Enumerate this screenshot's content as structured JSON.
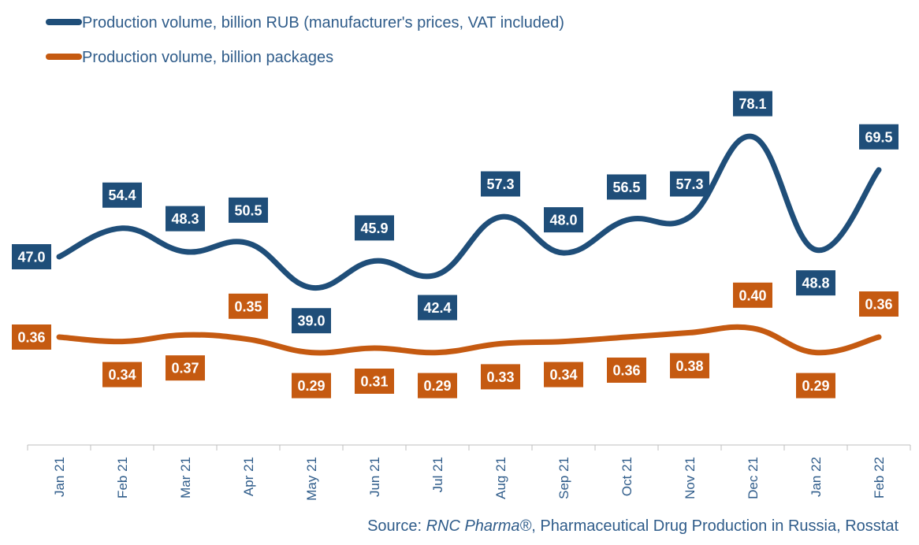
{
  "chart_data": {
    "type": "line",
    "categories": [
      "Jan 21",
      "Feb 21",
      "Mar 21",
      "Apr 21",
      "May 21",
      "Jun 21",
      "Jul 21",
      "Aug 21",
      "Sep 21",
      "Oct 21",
      "Nov 21",
      "Dec 21",
      "Jan 22",
      "Feb 22"
    ],
    "series": [
      {
        "name": "Production volume, billion RUB (manufacturer's prices, VAT included)",
        "color": "#1f4e79",
        "values": [
          47.0,
          54.4,
          48.3,
          50.5,
          39.0,
          45.9,
          42.4,
          57.3,
          48.0,
          56.5,
          57.3,
          78.1,
          48.8,
          69.5
        ],
        "labels": [
          "47.0",
          "54.4",
          "48.3",
          "50.5",
          "39.0",
          "45.9",
          "42.4",
          "57.3",
          "48.0",
          "56.5",
          "57.3",
          "78.1",
          "48.8",
          "69.5"
        ],
        "label_side": [
          "left",
          "above",
          "above",
          "above",
          "below",
          "above",
          "below",
          "above",
          "above",
          "above",
          "above",
          "above",
          "below",
          "above"
        ]
      },
      {
        "name": "Production volume, billion packages",
        "color": "#c55a11",
        "values": [
          0.36,
          0.34,
          0.37,
          0.35,
          0.29,
          0.31,
          0.29,
          0.33,
          0.34,
          0.36,
          0.38,
          0.4,
          0.29,
          0.36
        ],
        "labels": [
          "0.36",
          "0.34",
          "0.37",
          "0.35",
          "0.29",
          "0.31",
          "0.29",
          "0.33",
          "0.34",
          "0.36",
          "0.38",
          "0.40",
          "0.29",
          "0.36"
        ],
        "label_side": [
          "left",
          "below",
          "below",
          "above",
          "below",
          "below",
          "below",
          "below",
          "below",
          "below",
          "below",
          "above",
          "below",
          "above"
        ]
      }
    ],
    "legend_position": "top-left",
    "grid": false
  },
  "source": {
    "prefix": "Source: ",
    "brand": "RNC Pharma®",
    "suffix": ", Pharmaceutical Drug Production in Russia, Rosstat"
  }
}
